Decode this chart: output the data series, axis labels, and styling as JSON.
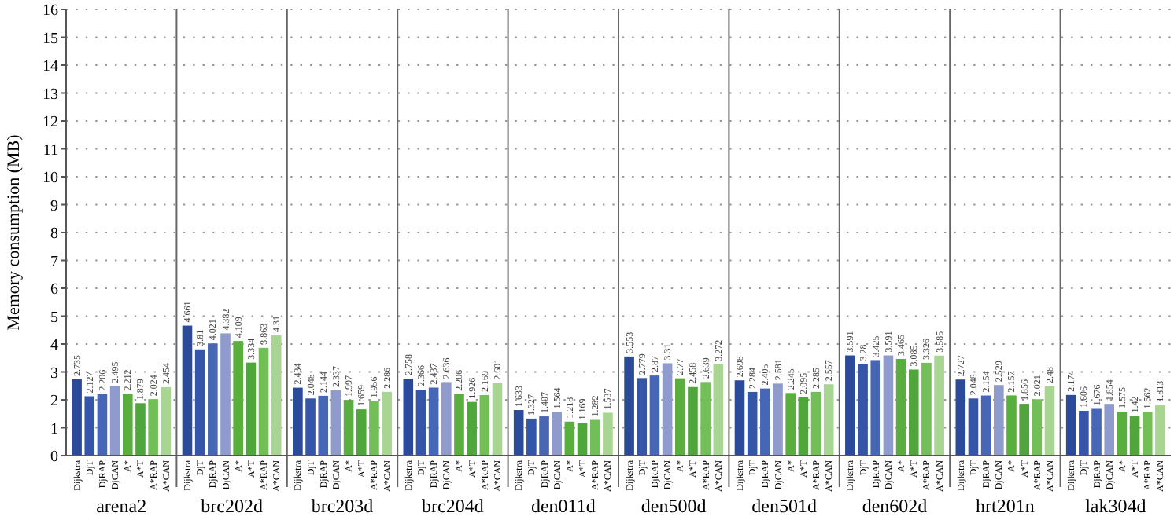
{
  "chart_data": {
    "type": "bar",
    "ylabel": "Memory consumption (MB)",
    "categories": [
      "arena2",
      "brc202d",
      "brc203d",
      "brc204d",
      "den011d",
      "den500d",
      "den501d",
      "den602d",
      "hrt201n",
      "lak304d"
    ],
    "series": [
      {
        "name": "Dijkstra",
        "color": "#2b4a9a",
        "values": [
          2.735,
          4.661,
          2.434,
          2.758,
          1.633,
          3.553,
          2.698,
          3.591,
          2.727,
          2.174
        ]
      },
      {
        "name": "DjT",
        "color": "#3556a8",
        "values": [
          2.127,
          3.81,
          2.048,
          2.366,
          1.327,
          2.779,
          2.284,
          3.28,
          2.048,
          1.606
        ]
      },
      {
        "name": "DjRAP",
        "color": "#4767b6",
        "values": [
          2.206,
          4.021,
          2.144,
          2.437,
          1.407,
          2.87,
          2.405,
          3.425,
          2.154,
          1.676
        ]
      },
      {
        "name": "DjCAN",
        "color": "#8e9bcc",
        "values": [
          2.495,
          4.382,
          2.337,
          2.636,
          1.564,
          3.31,
          2.581,
          3.591,
          2.529,
          1.854
        ]
      },
      {
        "name": "A*",
        "color": "#5aae3e",
        "values": [
          2.212,
          4.109,
          1.997,
          2.206,
          1.218,
          2.77,
          2.245,
          3.465,
          2.157,
          1.575
        ]
      },
      {
        "name": "A*T",
        "color": "#4fa63a",
        "values": [
          1.879,
          3.334,
          1.659,
          1.926,
          1.169,
          2.458,
          2.095,
          3.085,
          1.856,
          1.42
        ]
      },
      {
        "name": "A*RAP",
        "color": "#72bf58",
        "values": [
          2.024,
          3.863,
          1.956,
          2.169,
          1.282,
          2.639,
          2.285,
          3.326,
          2.021,
          1.562
        ]
      },
      {
        "name": "A*CAN",
        "color": "#a8d591",
        "values": [
          2.454,
          4.31,
          2.286,
          2.601,
          1.537,
          3.272,
          2.557,
          3.585,
          2.48,
          1.813
        ]
      }
    ],
    "ylim": [
      0,
      16
    ],
    "yticks": [
      0,
      1,
      2,
      3,
      4,
      5,
      6,
      7,
      8,
      9,
      10,
      11,
      12,
      13,
      14,
      15,
      16
    ],
    "grid": "y",
    "data_labels": true
  }
}
